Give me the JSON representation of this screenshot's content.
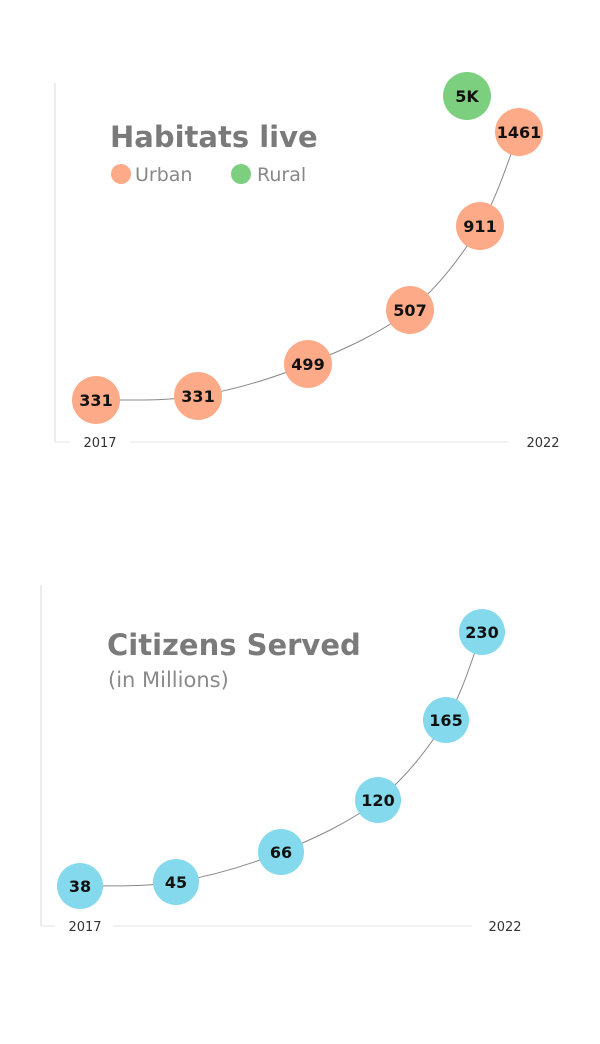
{
  "chart_data": [
    {
      "type": "line",
      "title": "Habitats live",
      "x_start_label": "2017",
      "x_end_label": "2022",
      "legend": [
        {
          "name": "Urban",
          "color": "#fcaa88"
        },
        {
          "name": "Rural",
          "color": "#7bcf7f"
        }
      ],
      "series": [
        {
          "name": "Urban",
          "color": "#fcaa88",
          "labels": [
            "331",
            "331",
            "499",
            "507",
            "911",
            "1461"
          ],
          "values": [
            331,
            331,
            499,
            507,
            911,
            1461
          ]
        },
        {
          "name": "Rural",
          "color": "#7bcf7f",
          "labels": [
            "5K"
          ],
          "values": [
            5000
          ]
        }
      ]
    },
    {
      "type": "line",
      "title": "Citizens Served",
      "subtitle": "(in Millions)",
      "x_start_label": "2017",
      "x_end_label": "2022",
      "series": [
        {
          "name": "Citizens",
          "color": "#84d9ec",
          "labels": [
            "38",
            "45",
            "66",
            "120",
            "165",
            "230"
          ],
          "values": [
            38,
            45,
            66,
            120,
            165,
            230
          ]
        }
      ]
    }
  ]
}
